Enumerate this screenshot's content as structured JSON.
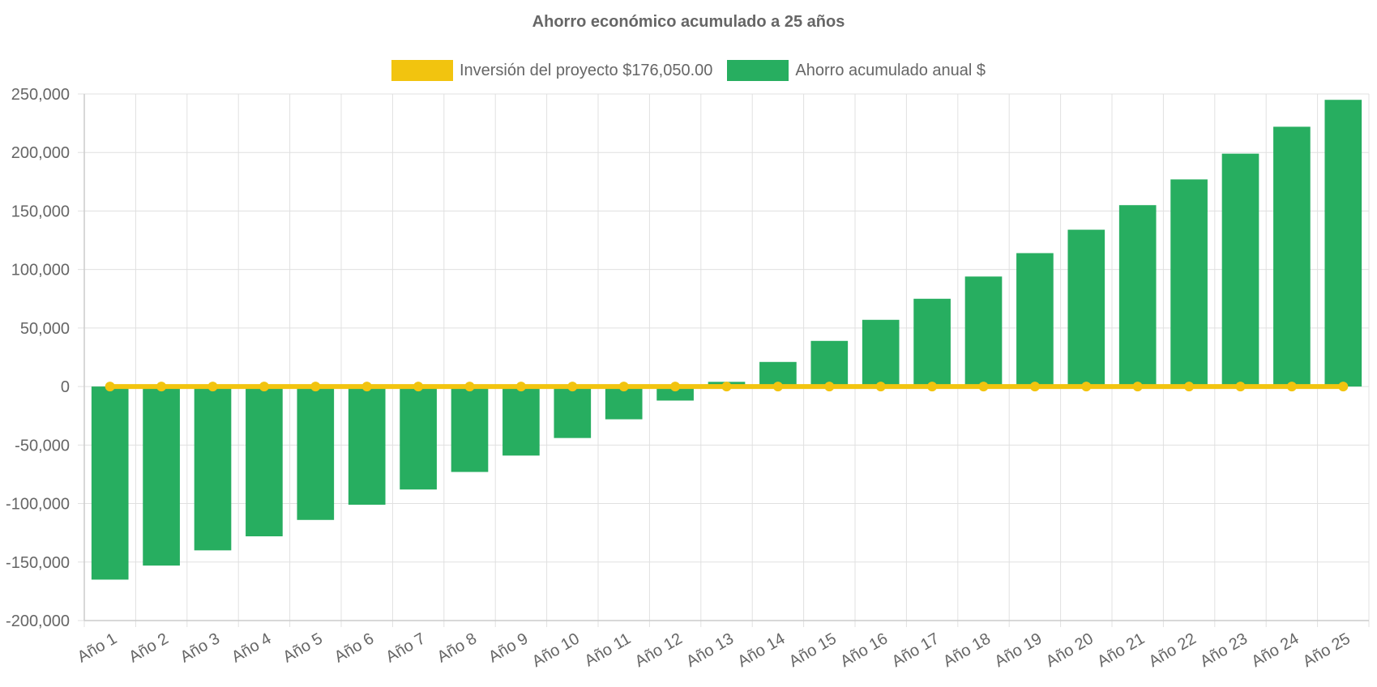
{
  "chart_data": {
    "type": "bar+line",
    "title": "Ahorro económico acumulado a 25 años",
    "categories": [
      "Año 1",
      "Año 2",
      "Año 3",
      "Año 4",
      "Año 5",
      "Año 6",
      "Año 7",
      "Año 8",
      "Año 9",
      "Año 10",
      "Año 11",
      "Año 12",
      "Año 13",
      "Año 14",
      "Año 15",
      "Año 16",
      "Año 17",
      "Año 18",
      "Año 19",
      "Año 20",
      "Año 21",
      "Año 22",
      "Año 23",
      "Año 24",
      "Año 25"
    ],
    "series": [
      {
        "name": "Inversión del proyecto $176,050.00",
        "kind": "line",
        "color": "#f2c40f",
        "values": [
          0,
          0,
          0,
          0,
          0,
          0,
          0,
          0,
          0,
          0,
          0,
          0,
          0,
          0,
          0,
          0,
          0,
          0,
          0,
          0,
          0,
          0,
          0,
          0,
          0
        ]
      },
      {
        "name": "Ahorro acumulado anual $",
        "kind": "bar",
        "color": "#27ae60",
        "values": [
          -165000,
          -153000,
          -140000,
          -128000,
          -114000,
          -101000,
          -88000,
          -73000,
          -59000,
          -44000,
          -28000,
          -12000,
          4000,
          21000,
          39000,
          57000,
          75000,
          94000,
          114000,
          134000,
          155000,
          177000,
          199000,
          222000,
          245000
        ]
      }
    ],
    "xlabel": "",
    "ylabel": "",
    "ylim": [
      -200000,
      250000
    ],
    "yticks": [
      250000,
      200000,
      150000,
      100000,
      50000,
      0,
      -50000,
      -100000,
      -150000,
      -200000
    ],
    "ytick_labels": [
      "250,000",
      "200,000",
      "150,000",
      "100,000",
      "50,000",
      "0",
      "-50,000",
      "-100,000",
      "-150,000",
      "-200,000"
    ],
    "grid": true,
    "legend_position": "top-center",
    "colors": {
      "grid": "#e0e0e0",
      "axis": "#cccccc",
      "text": "#666666"
    }
  }
}
